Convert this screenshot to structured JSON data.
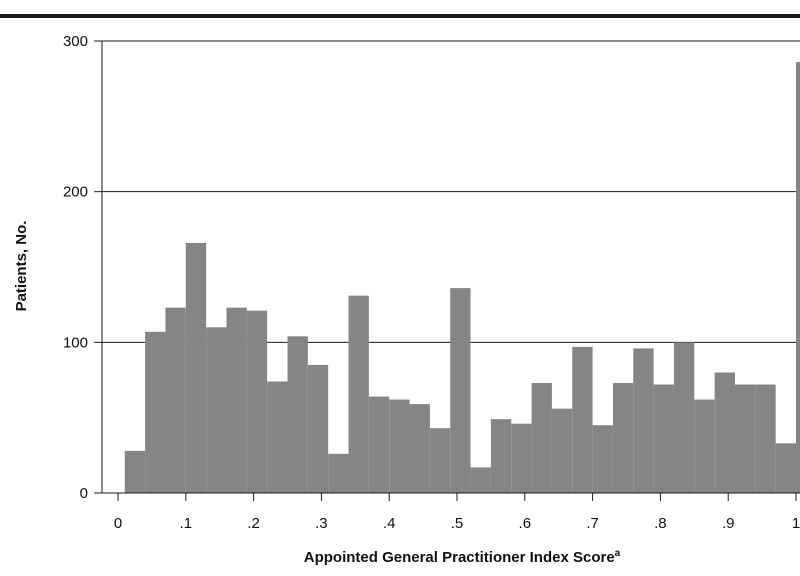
{
  "chart_data": {
    "type": "bar",
    "title": "",
    "xlabel": "Appointed General Practitioner Index Score",
    "xlabel_superscript": "a",
    "ylabel": "Patients, No.",
    "xlim": [
      0,
      1
    ],
    "ylim": [
      0,
      300
    ],
    "x_tick_values": [
      0,
      0.1,
      0.2,
      0.3,
      0.4,
      0.5,
      0.6,
      0.7,
      0.8,
      0.9,
      1
    ],
    "x_tick_labels": [
      "0",
      ".1",
      ".2",
      ".3",
      ".4",
      ".5",
      ".6",
      ".7",
      ".8",
      ".9",
      "1"
    ],
    "y_ticks": [
      0,
      100,
      200,
      300
    ],
    "grid": "horizontal",
    "bar_color": "#858585",
    "bins": [
      {
        "x0": 0.01,
        "x1": 0.04,
        "value": 28
      },
      {
        "x0": 0.04,
        "x1": 0.07,
        "value": 107
      },
      {
        "x0": 0.07,
        "x1": 0.1,
        "value": 123
      },
      {
        "x0": 0.1,
        "x1": 0.13,
        "value": 166
      },
      {
        "x0": 0.13,
        "x1": 0.16,
        "value": 110
      },
      {
        "x0": 0.16,
        "x1": 0.19,
        "value": 123
      },
      {
        "x0": 0.19,
        "x1": 0.22,
        "value": 121
      },
      {
        "x0": 0.22,
        "x1": 0.25,
        "value": 74
      },
      {
        "x0": 0.25,
        "x1": 0.28,
        "value": 104
      },
      {
        "x0": 0.28,
        "x1": 0.31,
        "value": 85
      },
      {
        "x0": 0.31,
        "x1": 0.34,
        "value": 26
      },
      {
        "x0": 0.34,
        "x1": 0.37,
        "value": 131
      },
      {
        "x0": 0.37,
        "x1": 0.4,
        "value": 64
      },
      {
        "x0": 0.4,
        "x1": 0.43,
        "value": 62
      },
      {
        "x0": 0.43,
        "x1": 0.46,
        "value": 59
      },
      {
        "x0": 0.46,
        "x1": 0.49,
        "value": 43
      },
      {
        "x0": 0.49,
        "x1": 0.52,
        "value": 136
      },
      {
        "x0": 0.52,
        "x1": 0.55,
        "value": 17
      },
      {
        "x0": 0.55,
        "x1": 0.58,
        "value": 49
      },
      {
        "x0": 0.58,
        "x1": 0.61,
        "value": 46
      },
      {
        "x0": 0.61,
        "x1": 0.64,
        "value": 73
      },
      {
        "x0": 0.64,
        "x1": 0.67,
        "value": 56
      },
      {
        "x0": 0.67,
        "x1": 0.7,
        "value": 97
      },
      {
        "x0": 0.7,
        "x1": 0.73,
        "value": 45
      },
      {
        "x0": 0.73,
        "x1": 0.76,
        "value": 73
      },
      {
        "x0": 0.76,
        "x1": 0.79,
        "value": 96
      },
      {
        "x0": 0.79,
        "x1": 0.82,
        "value": 72
      },
      {
        "x0": 0.82,
        "x1": 0.85,
        "value": 100
      },
      {
        "x0": 0.85,
        "x1": 0.88,
        "value": 62
      },
      {
        "x0": 0.88,
        "x1": 0.91,
        "value": 80
      },
      {
        "x0": 0.91,
        "x1": 0.94,
        "value": 72
      },
      {
        "x0": 0.94,
        "x1": 0.97,
        "value": 72
      },
      {
        "x0": 0.97,
        "x1": 1.0,
        "value": 33
      },
      {
        "x0": 1.0,
        "x1": 1.03,
        "value": 286
      }
    ]
  }
}
